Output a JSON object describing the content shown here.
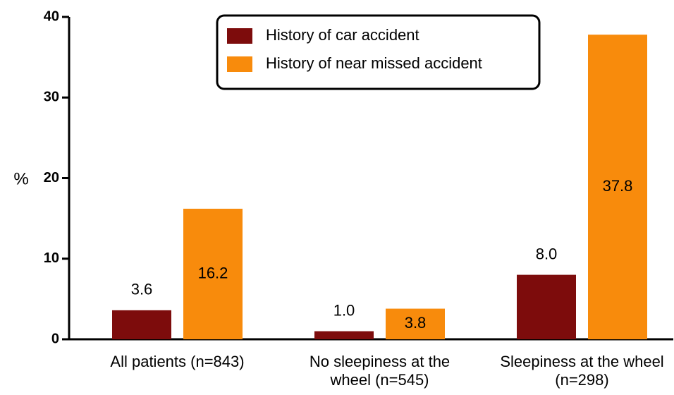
{
  "chart_data": {
    "type": "bar",
    "y_label": "%",
    "categories": [
      "All patients (n=843)",
      "No sleepiness at the wheel (n=545)",
      "Sleepiness at the wheel (n=298)"
    ],
    "series": [
      {
        "name": "History of car accident",
        "color": "#7d0c0c",
        "values": [
          3.6,
          1.0,
          8.0
        ],
        "value_labels": [
          "3.6",
          "1.0",
          "8.0"
        ]
      },
      {
        "name": "History of near missed accident",
        "color": "#f88b0c",
        "values": [
          16.2,
          3.8,
          37.8
        ],
        "value_labels": [
          "16.2",
          "3.8",
          "37.8"
        ]
      }
    ],
    "ylim": [
      0,
      40
    ],
    "yticks": [
      0,
      10,
      20,
      30,
      40
    ],
    "legend": "top-center"
  }
}
